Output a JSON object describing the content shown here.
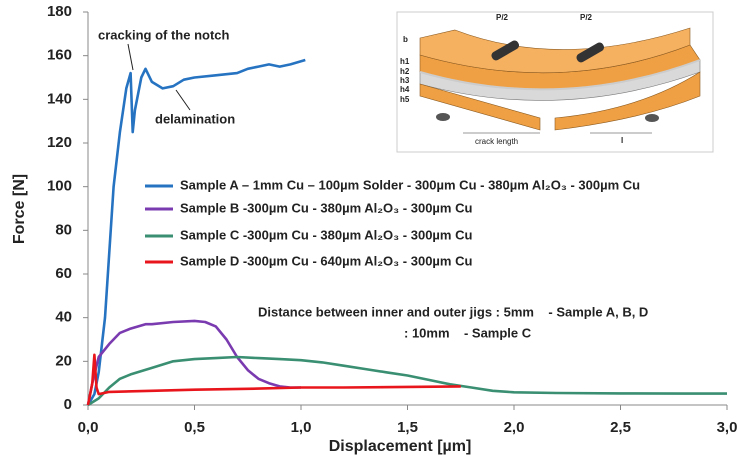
{
  "chart_data": {
    "type": "line",
    "x_label": "Displacement [µm]",
    "y_label": "Force [N]",
    "xlim": [
      0,
      3
    ],
    "ylim": [
      0,
      180
    ],
    "xticks": [
      {
        "value": 0,
        "label": "0,0"
      },
      {
        "value": 0.5,
        "label": "0,5"
      },
      {
        "value": 1,
        "label": "1,0"
      },
      {
        "value": 1.5,
        "label": "1,5"
      },
      {
        "value": 2,
        "label": "2,0"
      },
      {
        "value": 2.5,
        "label": "2,5"
      },
      {
        "value": 3,
        "label": "3,0"
      }
    ],
    "yticks": [
      0,
      20,
      40,
      60,
      80,
      100,
      120,
      140,
      160,
      180
    ],
    "grid": false,
    "series": [
      {
        "name": "Sample A – 1mm Cu – 100µm Solder - 300µm Cu - 380µm Al₂O₃ - 300µm  Cu",
        "color": "#2673c2",
        "x": [
          0,
          0.03,
          0.05,
          0.08,
          0.1,
          0.12,
          0.15,
          0.18,
          0.2,
          0.21,
          0.22,
          0.25,
          0.27,
          0.3,
          0.35,
          0.4,
          0.45,
          0.5,
          0.6,
          0.7,
          0.75,
          0.8,
          0.85,
          0.9,
          0.95,
          1.02
        ],
        "values": [
          0,
          5,
          15,
          40,
          70,
          100,
          125,
          145,
          152,
          125,
          135,
          150,
          154,
          148,
          145,
          146,
          149,
          150,
          151,
          152,
          154,
          155,
          156,
          155,
          156,
          158
        ]
      },
      {
        "name": "Sample B -300µm Cu - 380µm Al₂O₃ - 300µm  Cu",
        "color": "#7b3bb0",
        "x": [
          0,
          0.02,
          0.05,
          0.1,
          0.15,
          0.2,
          0.27,
          0.3,
          0.4,
          0.5,
          0.55,
          0.6,
          0.65,
          0.7,
          0.75,
          0.8,
          0.85,
          0.9,
          0.95,
          1.0
        ],
        "values": [
          0,
          10,
          22,
          28,
          33,
          35,
          37,
          37,
          38,
          38.5,
          38,
          36,
          30,
          22,
          16,
          12,
          10,
          8.5,
          8,
          8
        ]
      },
      {
        "name": "Sample C -300µm Cu - 380µm Al₂O₃ - 300µm  Cu",
        "color": "#3a8f72",
        "x": [
          0,
          0.05,
          0.1,
          0.15,
          0.2,
          0.3,
          0.4,
          0.5,
          0.6,
          0.7,
          0.8,
          0.9,
          1.0,
          1.1,
          1.2,
          1.3,
          1.4,
          1.5,
          1.6,
          1.7,
          1.8,
          1.9,
          2.0,
          2.2,
          2.5,
          2.8,
          3.0
        ],
        "values": [
          0,
          3,
          8,
          12,
          14,
          17,
          20,
          21,
          21.5,
          22,
          21.5,
          21,
          20.5,
          19.5,
          18,
          16.5,
          15,
          13.5,
          11.5,
          9.5,
          8,
          6.5,
          5.8,
          5.5,
          5.3,
          5.2,
          5.2
        ]
      },
      {
        "name": "Sample D -300µm Cu - 640µm Al₂O₃ - 300µm  Cu",
        "color": "#e8161c",
        "x": [
          0,
          0.02,
          0.03,
          0.04,
          0.05,
          0.1,
          0.3,
          0.5,
          0.8,
          1.0,
          1.2,
          1.5,
          1.75
        ],
        "values": [
          0,
          10,
          23,
          8,
          5,
          6,
          6.5,
          7,
          7.5,
          8,
          8,
          8.3,
          8.5
        ]
      }
    ],
    "annotations": [
      "cracking of the notch",
      "delamination",
      "Distance between inner and outer jigs : 5mm    - Sample A, B, D",
      ": 10mm    - Sample C"
    ]
  },
  "inset": {
    "labels": [
      "b",
      "P/2",
      "P/2",
      "h1",
      "h2",
      "h3",
      "h4",
      "h5",
      "crack length",
      "l"
    ]
  }
}
